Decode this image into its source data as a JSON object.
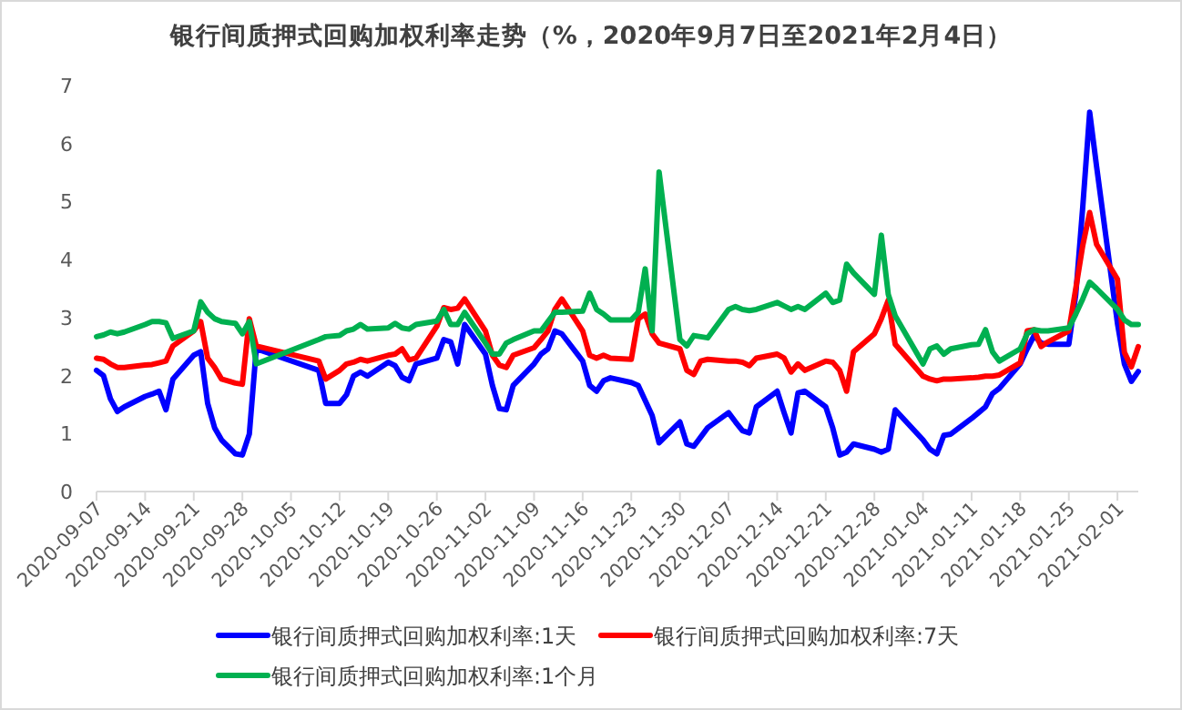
{
  "chart_data": {
    "type": "line",
    "title": "银行间质押式回购加权利率走势（%，2020年9月7日至2021年2月4日）",
    "x": [
      "2020-09-07",
      "2020-09-08",
      "2020-09-09",
      "2020-09-10",
      "2020-09-11",
      "2020-09-14",
      "2020-09-15",
      "2020-09-16",
      "2020-09-17",
      "2020-09-18",
      "2020-09-21",
      "2020-09-22",
      "2020-09-23",
      "2020-09-24",
      "2020-09-25",
      "2020-09-27",
      "2020-09-28",
      "2020-09-29",
      "2020-09-30",
      "2020-10-09",
      "2020-10-10",
      "2020-10-12",
      "2020-10-13",
      "2020-10-14",
      "2020-10-15",
      "2020-10-16",
      "2020-10-19",
      "2020-10-20",
      "2020-10-21",
      "2020-10-22",
      "2020-10-23",
      "2020-10-26",
      "2020-10-27",
      "2020-10-28",
      "2020-10-29",
      "2020-10-30",
      "2020-11-02",
      "2020-11-03",
      "2020-11-04",
      "2020-11-05",
      "2020-11-06",
      "2020-11-09",
      "2020-11-10",
      "2020-11-11",
      "2020-11-12",
      "2020-11-13",
      "2020-11-16",
      "2020-11-17",
      "2020-11-18",
      "2020-11-19",
      "2020-11-20",
      "2020-11-23",
      "2020-11-24",
      "2020-11-25",
      "2020-11-26",
      "2020-11-27",
      "2020-11-30",
      "2020-12-01",
      "2020-12-02",
      "2020-12-03",
      "2020-12-04",
      "2020-12-07",
      "2020-12-08",
      "2020-12-09",
      "2020-12-10",
      "2020-12-11",
      "2020-12-14",
      "2020-12-15",
      "2020-12-16",
      "2020-12-17",
      "2020-12-18",
      "2020-12-21",
      "2020-12-22",
      "2020-12-23",
      "2020-12-24",
      "2020-12-25",
      "2020-12-28",
      "2020-12-29",
      "2020-12-30",
      "2020-12-31",
      "2021-01-04",
      "2021-01-05",
      "2021-01-06",
      "2021-01-07",
      "2021-01-08",
      "2021-01-11",
      "2021-01-12",
      "2021-01-13",
      "2021-01-14",
      "2021-01-15",
      "2021-01-18",
      "2021-01-19",
      "2021-01-20",
      "2021-01-21",
      "2021-01-22",
      "2021-01-25",
      "2021-01-26",
      "2021-01-27",
      "2021-01-28",
      "2021-01-29",
      "2021-02-01",
      "2021-02-02",
      "2021-02-03",
      "2021-02-04"
    ],
    "series": [
      {
        "name": "银行间质押式回购加权利率:1天",
        "color": "#0000ff",
        "values": [
          2.09,
          2.0,
          1.6,
          1.38,
          1.46,
          1.64,
          1.68,
          1.73,
          1.41,
          1.94,
          2.35,
          2.41,
          1.52,
          1.1,
          0.89,
          0.65,
          0.63,
          0.99,
          2.46,
          2.09,
          1.52,
          1.52,
          1.67,
          1.99,
          2.06,
          1.99,
          2.23,
          2.17,
          1.97,
          1.91,
          2.2,
          2.3,
          2.62,
          2.58,
          2.2,
          2.88,
          2.37,
          1.83,
          1.43,
          1.41,
          1.83,
          2.2,
          2.37,
          2.46,
          2.77,
          2.72,
          2.25,
          1.83,
          1.73,
          1.91,
          1.96,
          1.88,
          1.83,
          1.57,
          1.31,
          0.84,
          1.2,
          0.82,
          0.78,
          0.94,
          1.1,
          1.36,
          1.2,
          1.05,
          1.01,
          1.46,
          1.73,
          1.36,
          1.01,
          1.7,
          1.73,
          1.46,
          1.1,
          0.63,
          0.68,
          0.82,
          0.73,
          0.68,
          0.73,
          1.41,
          0.89,
          0.73,
          0.65,
          0.97,
          0.99,
          1.26,
          1.36,
          1.46,
          1.69,
          1.78,
          2.2,
          2.46,
          2.69,
          2.56,
          2.54,
          2.54,
          3.4,
          4.9,
          6.54,
          5.6,
          2.9,
          2.2,
          1.9,
          2.07
        ]
      },
      {
        "name": "银行间质押式回购加权利率:7天",
        "color": "#ff0000",
        "values": [
          2.3,
          2.28,
          2.2,
          2.14,
          2.14,
          2.18,
          2.19,
          2.22,
          2.25,
          2.51,
          2.77,
          2.93,
          2.3,
          2.14,
          1.94,
          1.87,
          1.85,
          2.98,
          2.51,
          2.25,
          1.94,
          2.09,
          2.2,
          2.23,
          2.28,
          2.25,
          2.35,
          2.37,
          2.46,
          2.27,
          2.3,
          2.85,
          3.17,
          3.14,
          3.16,
          3.32,
          2.77,
          2.35,
          2.18,
          2.14,
          2.35,
          2.48,
          2.62,
          2.77,
          3.14,
          3.32,
          2.77,
          2.35,
          2.3,
          2.35,
          2.3,
          2.28,
          2.98,
          3.06,
          2.72,
          2.56,
          2.46,
          2.09,
          2.02,
          2.25,
          2.28,
          2.25,
          2.25,
          2.23,
          2.17,
          2.3,
          2.37,
          2.3,
          2.06,
          2.2,
          2.09,
          2.25,
          2.23,
          2.09,
          1.73,
          2.41,
          2.72,
          2.98,
          3.3,
          2.54,
          1.99,
          1.94,
          1.91,
          1.94,
          1.94,
          1.96,
          1.97,
          1.99,
          1.99,
          2.01,
          2.22,
          2.77,
          2.79,
          2.5,
          2.58,
          2.77,
          3.5,
          4.24,
          4.81,
          4.26,
          3.66,
          2.4,
          2.15,
          2.5
        ]
      },
      {
        "name": "银行间质押式回购加权利率:1个月",
        "color": "#00b050",
        "values": [
          2.67,
          2.7,
          2.75,
          2.72,
          2.75,
          2.88,
          2.93,
          2.93,
          2.91,
          2.64,
          2.77,
          3.27,
          3.09,
          2.98,
          2.93,
          2.9,
          2.72,
          2.93,
          2.2,
          2.62,
          2.67,
          2.69,
          2.77,
          2.8,
          2.88,
          2.8,
          2.82,
          2.9,
          2.82,
          2.8,
          2.88,
          2.94,
          3.14,
          2.88,
          2.88,
          3.09,
          2.56,
          2.37,
          2.37,
          2.56,
          2.62,
          2.77,
          2.77,
          2.93,
          3.09,
          3.09,
          3.11,
          3.42,
          3.14,
          3.06,
          2.96,
          2.96,
          3.09,
          3.84,
          2.77,
          5.51,
          2.62,
          2.51,
          2.69,
          2.67,
          2.65,
          3.14,
          3.19,
          3.14,
          3.12,
          3.14,
          3.26,
          3.2,
          3.14,
          3.19,
          3.14,
          3.42,
          3.26,
          3.3,
          3.92,
          3.77,
          3.4,
          4.42,
          3.4,
          3.03,
          2.2,
          2.46,
          2.51,
          2.37,
          2.46,
          2.53,
          2.54,
          2.79,
          2.41,
          2.25,
          2.46,
          2.72,
          2.79,
          2.77,
          2.77,
          2.82,
          3.06,
          3.32,
          3.61,
          3.5,
          3.14,
          2.96,
          2.88,
          2.88
        ]
      }
    ],
    "xlim": [
      "2020-09-07",
      "2021-02-04"
    ],
    "xticks": [
      "2020-09-07",
      "2020-09-14",
      "2020-09-21",
      "2020-09-28",
      "2020-10-05",
      "2020-10-12",
      "2020-10-19",
      "2020-10-26",
      "2020-11-02",
      "2020-11-09",
      "2020-11-16",
      "2020-11-23",
      "2020-11-30",
      "2020-12-07",
      "2020-12-14",
      "2020-12-21",
      "2020-12-28",
      "2021-01-04",
      "2021-01-11",
      "2021-01-18",
      "2021-01-25",
      "2021-02-01"
    ],
    "ylim": [
      0,
      7
    ],
    "yticks": [
      0,
      1,
      2,
      3,
      4,
      5,
      6,
      7
    ],
    "grid": false,
    "legend": "bottom",
    "marker": "none",
    "line_style": "solid"
  }
}
